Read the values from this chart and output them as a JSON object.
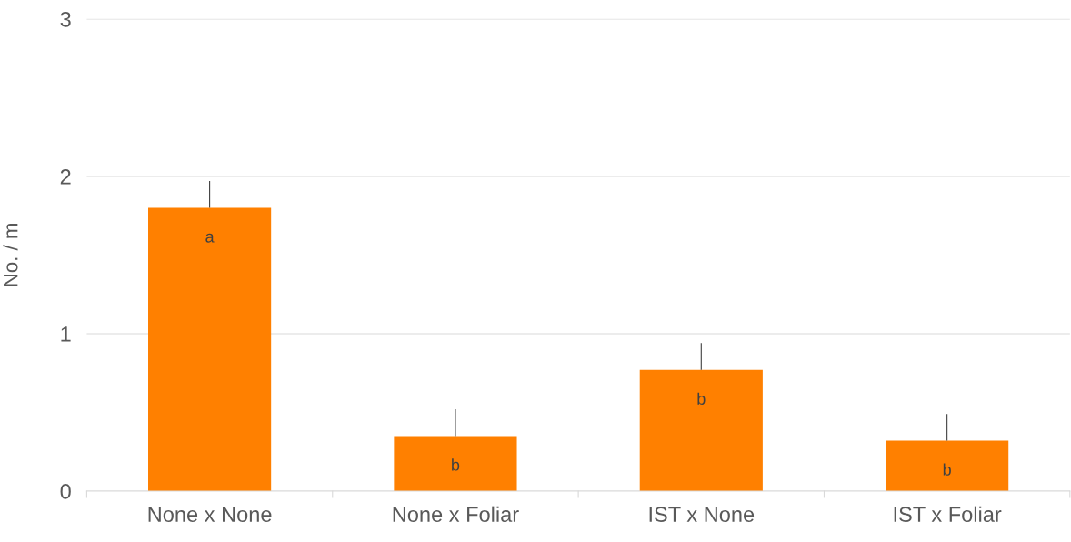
{
  "chart_data": {
    "type": "bar",
    "ylabel": "No. / m",
    "categories": [
      "None x None",
      "None x Foliar",
      "IST x None",
      "IST x Foliar"
    ],
    "values": [
      1.8,
      0.35,
      0.77,
      0.32
    ],
    "errors": [
      [
        1.8,
        1.97
      ],
      [
        0.35,
        0.52
      ],
      [
        0.77,
        0.94
      ],
      [
        0.32,
        0.49
      ]
    ],
    "color": "#ff8000",
    "ylim": [
      0,
      3
    ],
    "yticks": [
      0,
      1,
      2,
      3
    ],
    "grid": "y",
    "annotations": [
      "a",
      "b",
      "b",
      "b"
    ]
  }
}
